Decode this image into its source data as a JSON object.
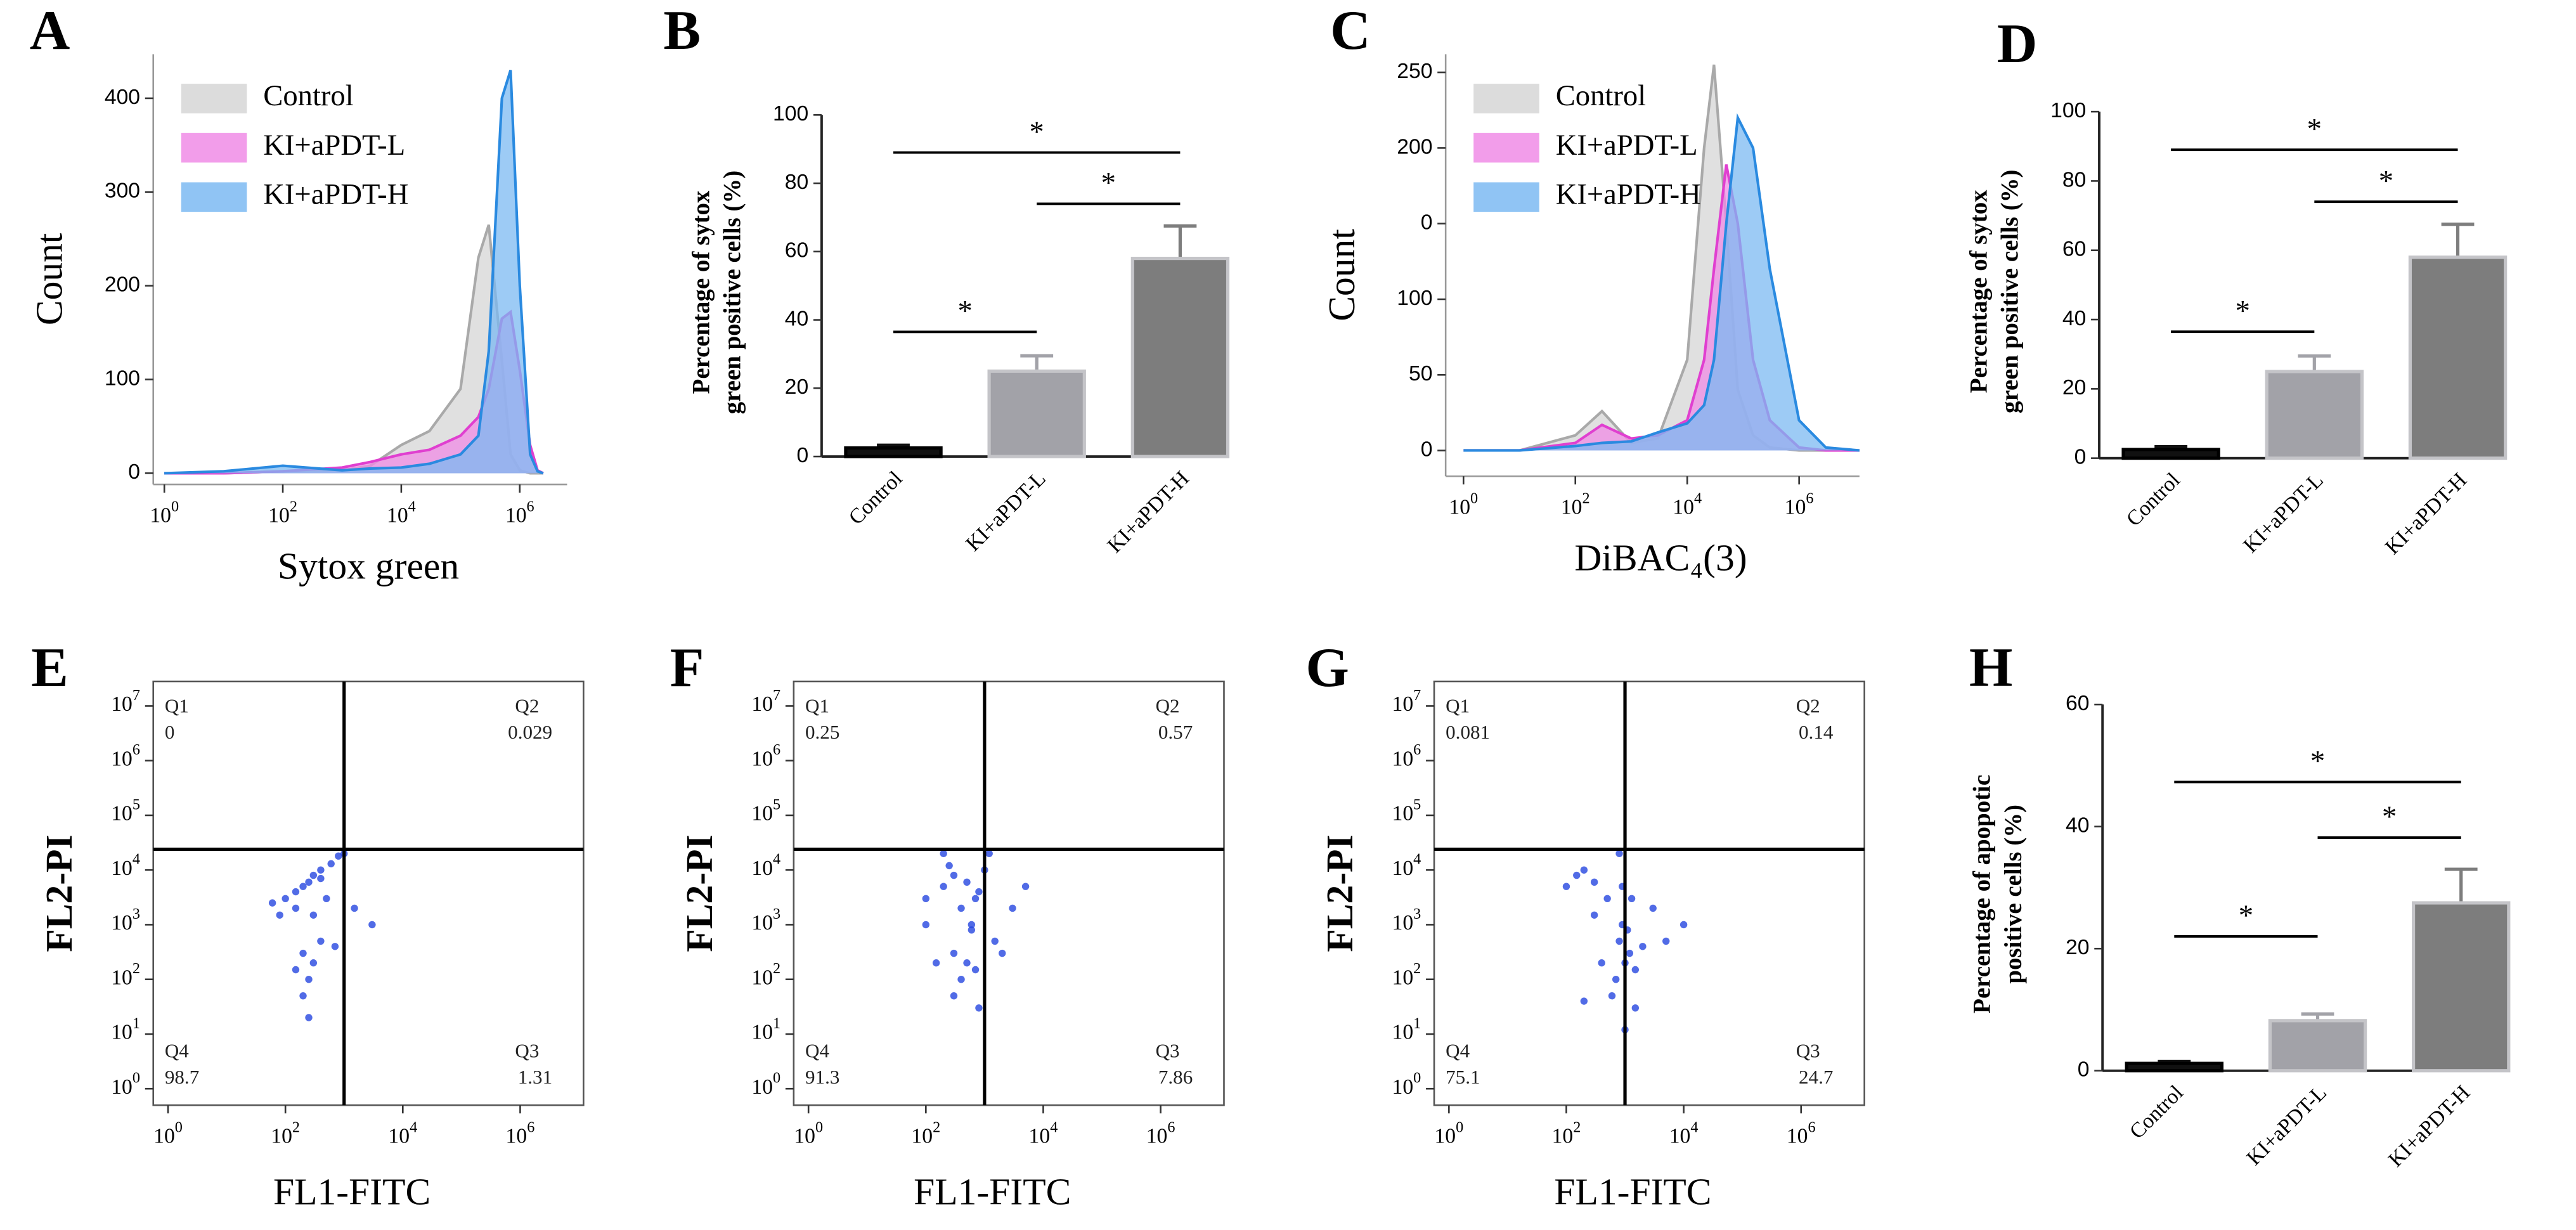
{
  "chart_data": [
    {
      "type": "area",
      "panel": "A",
      "ylabel": "Count",
      "xlabel": "Sytox green",
      "xscale": "log",
      "xlim": [
        0.65,
        6300000
      ],
      "xticks": [
        {
          "value": 1,
          "label": "10^0"
        },
        {
          "value": 100,
          "label": "10^2"
        },
        {
          "value": 10000,
          "label": "10^4"
        },
        {
          "value": 1000000,
          "label": "10^6"
        }
      ],
      "ylim": [
        -12,
        447
      ],
      "yticks": [
        0,
        100,
        200,
        300,
        400
      ],
      "x": [
        1,
        10,
        100,
        1000,
        3000,
        10000,
        30000,
        100000,
        200000,
        300000,
        500000,
        700000,
        1000000,
        1500000,
        2000000,
        2500000
      ],
      "series": [
        {
          "name": "Control",
          "color": "#a9a9a9",
          "fill": "#d6d6d6",
          "values": [
            0,
            0,
            2,
            3,
            8,
            30,
            45,
            90,
            230,
            265,
            120,
            20,
            3,
            0,
            0,
            0
          ]
        },
        {
          "name": "KI+aPDT-L",
          "color": "#e03fd0",
          "fill": "#f08ce6",
          "values": [
            0,
            0,
            2,
            6,
            12,
            20,
            25,
            40,
            60,
            90,
            165,
            172,
            110,
            30,
            3,
            0
          ]
        },
        {
          "name": "KI+aPDT-H",
          "color": "#2a8ae0",
          "fill": "#7cbaf2",
          "values": [
            0,
            2,
            8,
            3,
            5,
            6,
            10,
            20,
            40,
            130,
            400,
            430,
            200,
            20,
            2,
            0
          ]
        }
      ]
    },
    {
      "type": "bar",
      "panel": "B",
      "ylabel": [
        "Percentage of sytox",
        "green positive cells (%)"
      ],
      "categories": [
        "Control",
        "KI+aPDT-L",
        "KI+aPDT-H"
      ],
      "values": [
        2.5,
        25,
        58
      ],
      "errors": [
        0.8,
        4.5,
        9.5
      ],
      "colors": [
        "#111111",
        "#a2a2a8",
        "#7d7d7d"
      ],
      "ylim": [
        0,
        100
      ],
      "yticks": [
        0,
        20,
        40,
        60,
        80,
        100
      ],
      "significance": [
        {
          "text": "*",
          "from": 0,
          "to": 2,
          "y": 89
        },
        {
          "text": "*",
          "from": 1,
          "to": 2,
          "y": 74
        },
        {
          "text": "*",
          "from": 0,
          "to": 1,
          "y": 36.5
        }
      ]
    },
    {
      "type": "area",
      "panel": "C",
      "ylabel": "Count",
      "xlabel": "DiBAC₄(3)",
      "xscale": "log",
      "xlim": [
        0.48,
        12000000
      ],
      "xticks": [
        {
          "value": 1,
          "label": "10^0"
        },
        {
          "value": 100,
          "label": "10^2"
        },
        {
          "value": 10000,
          "label": "10^4"
        },
        {
          "value": 1000000,
          "label": "10^6"
        }
      ],
      "ylim": [
        -17,
        262
      ],
      "yticks": [
        0,
        50,
        100,
        {
          "value": 150,
          "label": "0"
        },
        200,
        250
      ],
      "x": [
        1,
        10,
        100,
        300,
        1000,
        3000,
        10000,
        20000,
        30000,
        50000,
        80000,
        150000,
        300000,
        1000000,
        3000000,
        12000000
      ],
      "series": [
        {
          "name": "Control",
          "color": "#a9a9a9",
          "fill": "#d6d6d6",
          "values": [
            0,
            0,
            10,
            26,
            5,
            8,
            60,
            200,
            255,
            150,
            40,
            10,
            2,
            0,
            0,
            0
          ]
        },
        {
          "name": "KI+aPDT-L",
          "color": "#e03fd0",
          "fill": "#f08ce6",
          "values": [
            0,
            0,
            5,
            17,
            8,
            10,
            20,
            60,
            120,
            189,
            150,
            60,
            20,
            2,
            0,
            0
          ]
        },
        {
          "name": "KI+aPDT-H",
          "color": "#2a8ae0",
          "fill": "#7cbaf2",
          "values": [
            0,
            0,
            3,
            5,
            6,
            12,
            18,
            30,
            60,
            150,
            220,
            200,
            120,
            20,
            2,
            0
          ]
        }
      ]
    },
    {
      "type": "bar",
      "panel": "D",
      "ylabel": [
        "Percentage of sytox",
        "green positive cells (%)"
      ],
      "categories": [
        "Control",
        "KI+aPDT-L",
        "KI+aPDT-H"
      ],
      "values": [
        2.5,
        25,
        58
      ],
      "errors": [
        0.8,
        4.5,
        9.5
      ],
      "colors": [
        "#111111",
        "#a2a2a8",
        "#7d7d7d"
      ],
      "ylim": [
        0,
        100
      ],
      "yticks": [
        0,
        20,
        40,
        60,
        80,
        100
      ],
      "significance": [
        {
          "text": "*",
          "from": 0,
          "to": 2,
          "y": 89
        },
        {
          "text": "*",
          "from": 1,
          "to": 2,
          "y": 74
        },
        {
          "text": "*",
          "from": 0,
          "to": 1,
          "y": 36.5
        }
      ]
    },
    {
      "type": "scatter",
      "panel": "E",
      "xlabel": "FL1-FITC",
      "ylabel": "FL2-PI",
      "xscale": "log",
      "yscale": "log",
      "color": "#2646e0",
      "xlim": [
        0.56,
        12000000
      ],
      "ylim": [
        0.5,
        28000000
      ],
      "xticks": [
        {
          "value": 1,
          "label": "10^0"
        },
        {
          "value": 100,
          "label": "10^2"
        },
        {
          "value": 10000,
          "label": "10^4"
        },
        {
          "value": 1000000,
          "label": "10^6"
        }
      ],
      "yticks": [
        {
          "value": 1,
          "label": "10^0"
        },
        {
          "value": 10,
          "label": "10^1"
        },
        {
          "value": 100,
          "label": "10^2"
        },
        {
          "value": 1000,
          "label": "10^3"
        },
        {
          "value": 10000,
          "label": "10^4"
        },
        {
          "value": 100000,
          "label": "10^5"
        },
        {
          "value": 1000000,
          "label": "10^6"
        },
        {
          "value": 10000000,
          "label": "10^7"
        }
      ],
      "gate": [
        1000,
        24000
      ],
      "quadrants": [
        {
          "name": "Q1",
          "value": 0
        },
        {
          "name": "Q2",
          "value": 0.029
        },
        {
          "name": "Q3",
          "value": 1.31
        },
        {
          "name": "Q4",
          "value": 98.7
        }
      ],
      "x": [
        60,
        100,
        150,
        200,
        300,
        400,
        600,
        800,
        1000,
        150,
        250,
        400,
        200,
        300,
        250,
        150,
        400,
        500,
        300,
        200,
        700,
        1500,
        80,
        3000,
        250
      ],
      "values": [
        2500,
        3000,
        4000,
        5000,
        8000,
        10000,
        13000,
        18000,
        20000,
        2000,
        6000,
        7000,
        300,
        200,
        100,
        150,
        500,
        3000,
        1500,
        50,
        400,
        2000,
        1500,
        1000,
        20
      ]
    },
    {
      "type": "scatter",
      "panel": "F",
      "xlabel": "FL1-FITC",
      "ylabel": "FL2-PI",
      "xscale": "log",
      "yscale": "log",
      "color": "#2646e0",
      "xlim": [
        0.56,
        12000000
      ],
      "ylim": [
        0.5,
        28000000
      ],
      "xticks": [
        {
          "value": 1,
          "label": "10^0"
        },
        {
          "value": 100,
          "label": "10^2"
        },
        {
          "value": 10000,
          "label": "10^4"
        },
        {
          "value": 1000000,
          "label": "10^6"
        }
      ],
      "yticks": [
        {
          "value": 1,
          "label": "10^0"
        },
        {
          "value": 10,
          "label": "10^1"
        },
        {
          "value": 100,
          "label": "10^2"
        },
        {
          "value": 1000,
          "label": "10^3"
        },
        {
          "value": 10000,
          "label": "10^4"
        },
        {
          "value": 100000,
          "label": "10^5"
        },
        {
          "value": 1000000,
          "label": "10^6"
        },
        {
          "value": 10000000,
          "label": "10^7"
        }
      ],
      "gate": [
        1000,
        24000
      ],
      "quadrants": [
        {
          "name": "Q1",
          "value": 0.25
        },
        {
          "name": "Q2",
          "value": 0.57
        },
        {
          "name": "Q3",
          "value": 7.86
        },
        {
          "name": "Q4",
          "value": 91.3
        }
      ],
      "x": [
        100,
        200,
        300,
        500,
        800,
        1000,
        400,
        600,
        300,
        500,
        700,
        400,
        1500,
        3000,
        100,
        200,
        5000,
        800,
        600,
        250,
        1200,
        2000,
        150,
        300,
        700
      ],
      "values": [
        3000,
        5000,
        8000,
        6000,
        4000,
        10000,
        2000,
        1000,
        300,
        200,
        150,
        100,
        500,
        2000,
        1000,
        20000,
        5000,
        30,
        800,
        12000,
        20000,
        300,
        200,
        50,
        3000
      ]
    },
    {
      "type": "scatter",
      "panel": "G",
      "xlabel": "FL1-FITC",
      "ylabel": "FL2-PI",
      "xscale": "log",
      "yscale": "log",
      "color": "#2646e0",
      "xlim": [
        0.56,
        12000000
      ],
      "ylim": [
        0.5,
        28000000
      ],
      "xticks": [
        {
          "value": 1,
          "label": "10^0"
        },
        {
          "value": 100,
          "label": "10^2"
        },
        {
          "value": 10000,
          "label": "10^4"
        },
        {
          "value": 1000000,
          "label": "10^6"
        }
      ],
      "yticks": [
        {
          "value": 1,
          "label": "10^0"
        },
        {
          "value": 10,
          "label": "10^1"
        },
        {
          "value": 100,
          "label": "10^2"
        },
        {
          "value": 1000,
          "label": "10^3"
        },
        {
          "value": 10000,
          "label": "10^4"
        },
        {
          "value": 100000,
          "label": "10^5"
        },
        {
          "value": 1000000,
          "label": "10^6"
        },
        {
          "value": 10000000,
          "label": "10^7"
        }
      ],
      "gate": [
        1000,
        24000
      ],
      "quadrants": [
        {
          "name": "Q1",
          "value": 0.081
        },
        {
          "name": "Q2",
          "value": 0.14
        },
        {
          "name": "Q3",
          "value": 24.7
        },
        {
          "name": "Q4",
          "value": 75.1
        }
      ],
      "x": [
        100,
        150,
        200,
        300,
        500,
        800,
        1000,
        1200,
        1500,
        700,
        900,
        2000,
        3000,
        600,
        1100,
        1300,
        800,
        5000,
        400,
        200,
        1000,
        900,
        1500,
        10000,
        300
      ],
      "values": [
        5000,
        8000,
        10000,
        6000,
        3000,
        500,
        200,
        300,
        150,
        100,
        1000,
        400,
        2000,
        50,
        800,
        3000,
        20000,
        500,
        200,
        40,
        12,
        5000,
        30,
        1000,
        1500
      ]
    },
    {
      "type": "bar",
      "panel": "H",
      "ylabel": [
        "Percentage of apopotic",
        "positive cells (%)"
      ],
      "categories": [
        "Control",
        "KI+aPDT-L",
        "KI+aPDT-H"
      ],
      "values": [
        1.2,
        8.2,
        27.5
      ],
      "errors": [
        0.3,
        1.1,
        5.5
      ],
      "colors": [
        "#111111",
        "#a2a2a8",
        "#7d7d7d"
      ],
      "ylim": [
        0,
        60
      ],
      "yticks": [
        0,
        20,
        40,
        60
      ],
      "significance": [
        {
          "text": "*",
          "from": 0,
          "to": 2,
          "y": 47.3
        },
        {
          "text": "*",
          "from": 1,
          "to": 2,
          "y": 38.2
        },
        {
          "text": "*",
          "from": 0,
          "to": 1,
          "y": 22
        }
      ]
    }
  ]
}
